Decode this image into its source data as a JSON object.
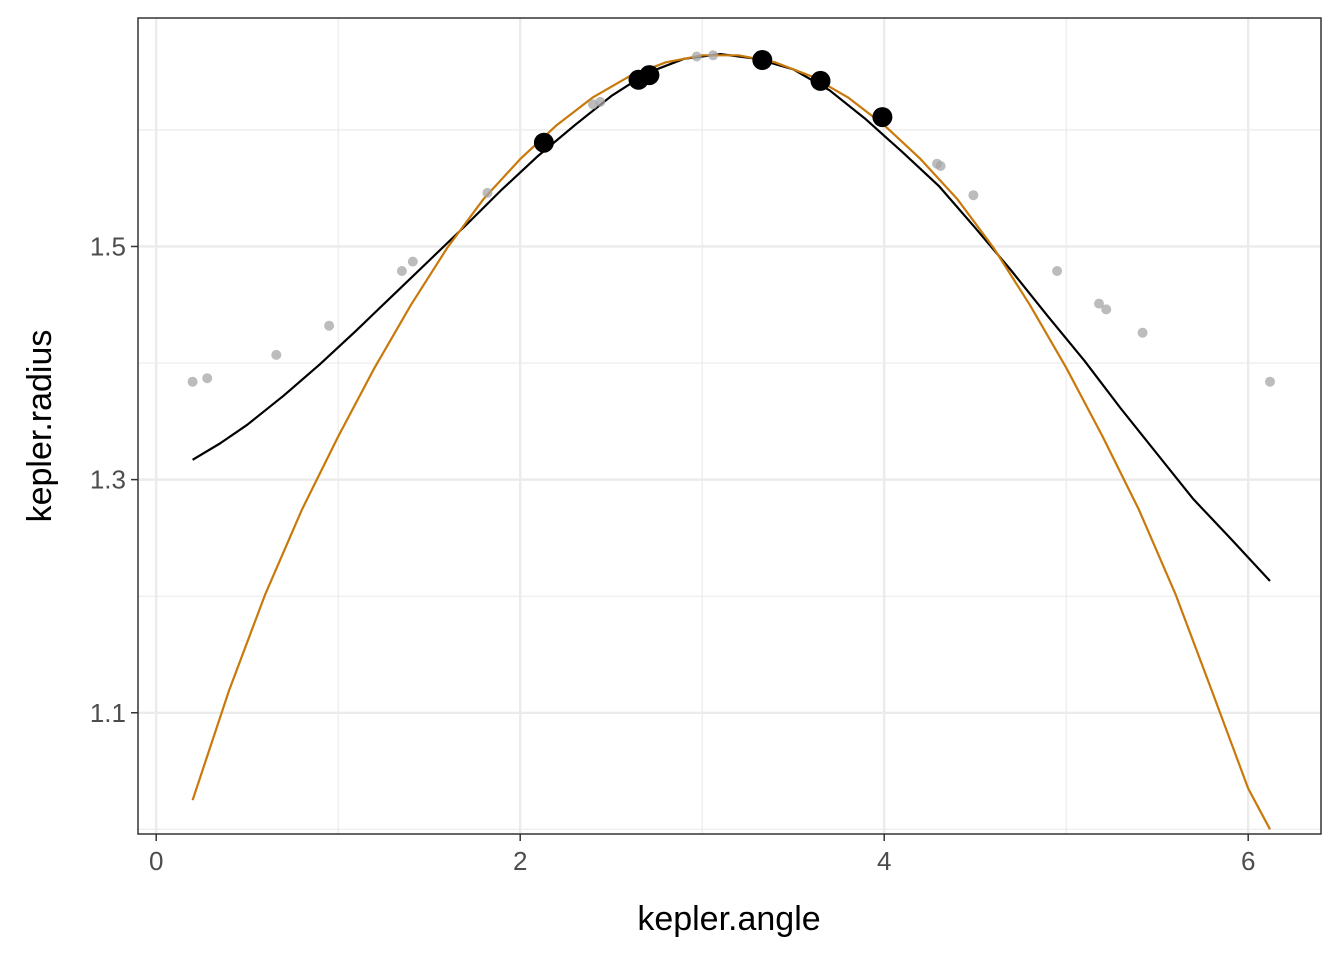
{
  "chart_data": {
    "type": "scatter",
    "xlabel": "kepler.angle",
    "ylabel": "kepler.radius",
    "xlim": [
      -0.1,
      6.4
    ],
    "ylim": [
      0.996,
      1.696
    ],
    "x_ticks": [
      0,
      2,
      4,
      6
    ],
    "x_tick_labels": [
      "0",
      "2",
      "4",
      "6"
    ],
    "x_minor_ticks": [
      1,
      3,
      5
    ],
    "y_ticks": [
      1.1,
      1.3,
      1.5
    ],
    "y_tick_labels": [
      "1.1",
      "1.3",
      "1.5"
    ],
    "y_minor_ticks": [
      1.0,
      1.2,
      1.4,
      1.6
    ],
    "grid": true,
    "legend": "none",
    "colors": {
      "background_points": "#a6a6a6",
      "highlight_points": "#000000",
      "black_curve": "#000000",
      "orange_curve": "#c8790a",
      "grid": "#ebebeb"
    },
    "series": [
      {
        "style": "background_points",
        "x": [
          0.2,
          0.28,
          0.66,
          0.95,
          1.35,
          1.41,
          1.82,
          2.4,
          2.44,
          2.97,
          3.06,
          4.29,
          4.31,
          4.49,
          4.95,
          5.18,
          5.22,
          5.42,
          6.12
        ],
        "y": [
          1.384,
          1.387,
          1.407,
          1.432,
          1.479,
          1.487,
          1.546,
          1.622,
          1.624,
          1.663,
          1.664,
          1.571,
          1.569,
          1.544,
          1.479,
          1.451,
          1.446,
          1.426,
          1.384
        ]
      },
      {
        "style": "highlight_points",
        "x": [
          2.13,
          2.65,
          2.71,
          3.33,
          3.65,
          3.99
        ],
        "y": [
          1.589,
          1.643,
          1.647,
          1.66,
          1.642,
          1.611
        ]
      },
      {
        "style": "black_curve",
        "x": [
          0.2,
          0.35,
          0.5,
          0.7,
          0.9,
          1.1,
          1.3,
          1.5,
          1.7,
          1.9,
          2.1,
          2.3,
          2.5,
          2.7,
          2.9,
          3.1,
          3.3,
          3.5,
          3.7,
          3.9,
          4.1,
          4.3,
          4.5,
          4.7,
          4.9,
          5.1,
          5.3,
          5.5,
          5.7,
          5.9,
          6.12
        ],
        "y": [
          1.317,
          1.331,
          1.347,
          1.372,
          1.399,
          1.428,
          1.458,
          1.488,
          1.518,
          1.549,
          1.578,
          1.604,
          1.629,
          1.649,
          1.661,
          1.665,
          1.661,
          1.652,
          1.634,
          1.609,
          1.581,
          1.552,
          1.516,
          1.479,
          1.44,
          1.402,
          1.361,
          1.322,
          1.283,
          1.25,
          1.213
        ]
      },
      {
        "style": "orange_curve",
        "x": [
          0.2,
          0.4,
          0.6,
          0.8,
          1.0,
          1.2,
          1.4,
          1.6,
          1.8,
          2.0,
          2.2,
          2.4,
          2.6,
          2.8,
          3.0,
          3.2,
          3.4,
          3.6,
          3.8,
          4.0,
          4.2,
          4.4,
          4.6,
          4.8,
          5.0,
          5.2,
          5.4,
          5.6,
          5.8,
          6.0,
          6.12
        ],
        "y": [
          1.025,
          1.119,
          1.202,
          1.274,
          1.337,
          1.396,
          1.45,
          1.499,
          1.541,
          1.575,
          1.604,
          1.628,
          1.646,
          1.658,
          1.664,
          1.664,
          1.658,
          1.646,
          1.628,
          1.604,
          1.575,
          1.541,
          1.499,
          1.45,
          1.396,
          1.337,
          1.274,
          1.202,
          1.119,
          1.035,
          1.0
        ]
      }
    ]
  }
}
